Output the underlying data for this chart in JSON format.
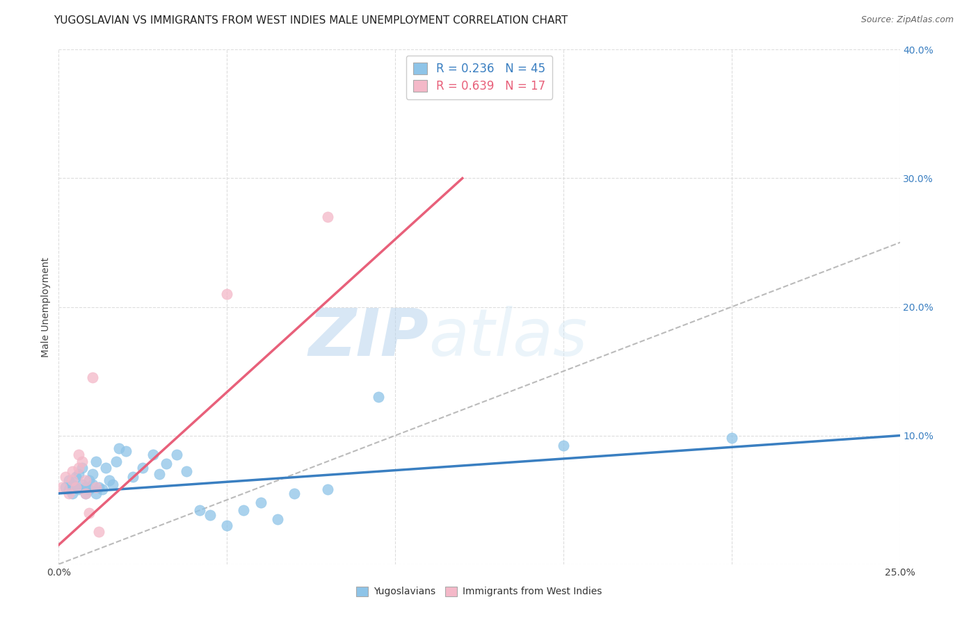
{
  "title": "YUGOSLAVIAN VS IMMIGRANTS FROM WEST INDIES MALE UNEMPLOYMENT CORRELATION CHART",
  "source": "Source: ZipAtlas.com",
  "ylabel": "Male Unemployment",
  "xlim": [
    0.0,
    0.25
  ],
  "ylim": [
    0.0,
    0.4
  ],
  "xticks": [
    0.0,
    0.05,
    0.1,
    0.15,
    0.2,
    0.25
  ],
  "yticks": [
    0.0,
    0.1,
    0.2,
    0.3,
    0.4
  ],
  "ytick_labels_right": [
    "",
    "10.0%",
    "20.0%",
    "30.0%",
    "40.0%"
  ],
  "xtick_labels": [
    "0.0%",
    "",
    "",
    "",
    "",
    "25.0%"
  ],
  "legend_R1": "0.236",
  "legend_N1": "45",
  "legend_R2": "0.639",
  "legend_N2": "17",
  "color_yugoslavians": "#8ec4e8",
  "color_westindies": "#f4b8c8",
  "color_line_yugoslavians": "#3a7fc1",
  "color_line_westindies": "#e8607a",
  "color_diagonal": "#bbbbbb",
  "watermark_zip": "ZIP",
  "watermark_atlas": "atlas",
  "yugoslavians_x": [
    0.002,
    0.003,
    0.003,
    0.004,
    0.004,
    0.005,
    0.005,
    0.006,
    0.006,
    0.007,
    0.007,
    0.008,
    0.008,
    0.009,
    0.009,
    0.01,
    0.01,
    0.011,
    0.011,
    0.012,
    0.013,
    0.014,
    0.015,
    0.016,
    0.017,
    0.018,
    0.02,
    0.022,
    0.025,
    0.028,
    0.03,
    0.032,
    0.035,
    0.038,
    0.042,
    0.045,
    0.05,
    0.055,
    0.06,
    0.065,
    0.07,
    0.08,
    0.095,
    0.15,
    0.2
  ],
  "yugoslavians_y": [
    0.06,
    0.058,
    0.065,
    0.055,
    0.062,
    0.06,
    0.068,
    0.058,
    0.07,
    0.062,
    0.075,
    0.06,
    0.055,
    0.065,
    0.058,
    0.07,
    0.062,
    0.08,
    0.055,
    0.06,
    0.058,
    0.075,
    0.065,
    0.062,
    0.08,
    0.09,
    0.088,
    0.068,
    0.075,
    0.085,
    0.07,
    0.078,
    0.085,
    0.072,
    0.042,
    0.038,
    0.03,
    0.042,
    0.048,
    0.035,
    0.055,
    0.058,
    0.13,
    0.092,
    0.098
  ],
  "westindies_x": [
    0.001,
    0.002,
    0.003,
    0.004,
    0.004,
    0.005,
    0.006,
    0.006,
    0.007,
    0.008,
    0.008,
    0.009,
    0.01,
    0.011,
    0.012,
    0.05,
    0.08
  ],
  "westindies_y": [
    0.06,
    0.068,
    0.055,
    0.065,
    0.072,
    0.06,
    0.075,
    0.085,
    0.08,
    0.065,
    0.055,
    0.04,
    0.145,
    0.06,
    0.025,
    0.21,
    0.27
  ],
  "title_fontsize": 11,
  "axis_label_fontsize": 10,
  "tick_fontsize": 10,
  "source_fontsize": 9,
  "legend_fontsize": 12
}
